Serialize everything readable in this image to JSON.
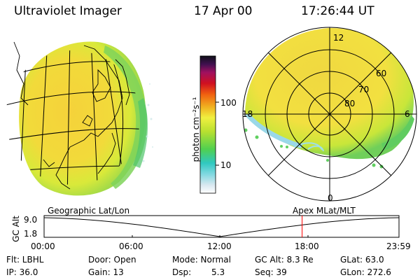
{
  "header": {
    "instrument": "Ultraviolet Imager",
    "date": "17 Apr 00",
    "time": "17:26:44 UT"
  },
  "colorbar": {
    "unit_label": "photon cm⁻²s⁻¹",
    "tick_100": "100",
    "tick_10": "10"
  },
  "polar": {
    "lat_70": "70",
    "lat_80": "80",
    "lat_60": "60",
    "mlt_12": "12",
    "mlt_18": "18",
    "mlt_6": "6",
    "mlt_0": "0"
  },
  "orbit": {
    "left_label": "Geographic Lat/Lon",
    "right_label": "Apex  MLat/MLT",
    "y_axis": "GC Alt",
    "y_top": "9.0",
    "y_bottom": "1.8",
    "x_ticks": [
      "00:00",
      "06:00",
      "12:00",
      "18:00",
      "23:59"
    ],
    "current_time_fraction": 0.727
  },
  "status": {
    "flt": "Flt: LBHL",
    "door": "Door: Open",
    "mode": "Mode: Normal",
    "gc_alt": "GC Alt: 8.3 Re",
    "glat": "GLat:  63.0",
    "ip": "IP: 36.0",
    "gain": "Gain: 13",
    "dsp_label": "Dsp:",
    "dsp_value": "5.3",
    "seq": "Seq: 39",
    "glon": "GLon: 272.6"
  }
}
